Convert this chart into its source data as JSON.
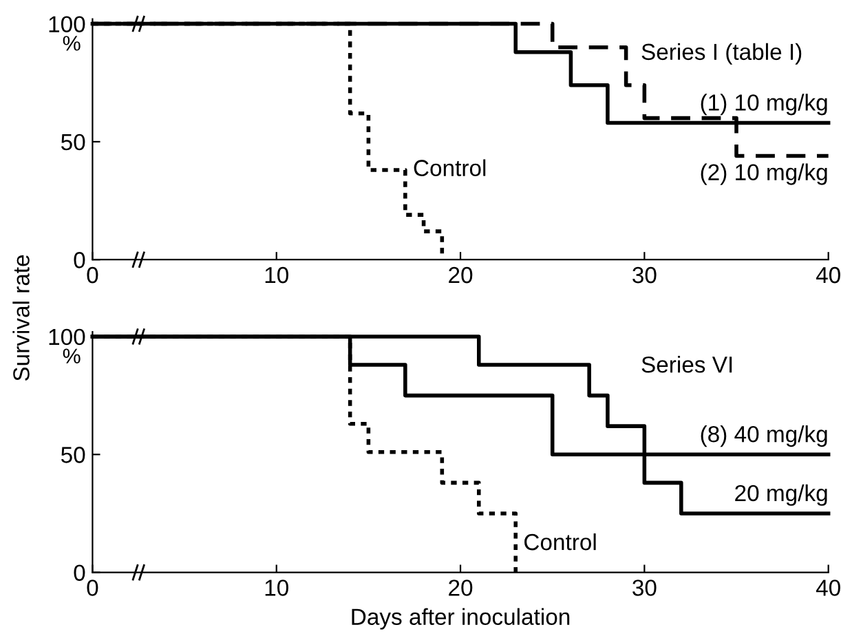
{
  "chart_data": [
    {
      "type": "step",
      "title": "Series I (table I)",
      "ylabel": "Survival rate",
      "xlim": [
        0,
        40
      ],
      "ylim": [
        0,
        102
      ],
      "xticks": [
        0,
        10,
        20,
        30,
        40
      ],
      "yticks": [
        0,
        50,
        100
      ],
      "grid": false,
      "series": [
        {
          "color": "#000000",
          "line_style": "solid",
          "x": [
            0,
            23,
            26,
            28,
            40
          ],
          "values": [
            100,
            88,
            74,
            58,
            58
          ]
        },
        {
          "color": "#000000",
          "line_style": "dashed",
          "x": [
            0,
            25,
            29,
            30,
            35,
            40
          ],
          "values": [
            100,
            90,
            74,
            60,
            44,
            44
          ]
        },
        {
          "color": "#000000",
          "line_style": "dotted",
          "x": [
            0,
            14,
            15,
            17,
            18,
            19
          ],
          "values": [
            100,
            62,
            38,
            19,
            12,
            0
          ]
        }
      ],
      "annotations": [
        "%",
        {
          "text": "(1) 10 mg/kg",
          "x": 40,
          "y": 58
        },
        {
          "text": "(2) 10 mg/kg",
          "x": 40,
          "y": 44
        },
        {
          "text": "Control",
          "x": 17,
          "y": 38
        }
      ]
    },
    {
      "type": "step",
      "title": "Series VI",
      "xlabel": "Days after inoculation",
      "xlim": [
        0,
        40
      ],
      "ylim": [
        0,
        102
      ],
      "xticks": [
        0,
        10,
        20,
        30,
        40
      ],
      "yticks": [
        0,
        50,
        100
      ],
      "grid": false,
      "series": [
        {
          "color": "#000000",
          "line_style": "solid",
          "x": [
            0,
            21,
            27,
            28,
            30,
            40
          ],
          "values": [
            100,
            88,
            75,
            62,
            50,
            50
          ]
        },
        {
          "color": "#000000",
          "line_style": "solid",
          "x": [
            0,
            14,
            17,
            25,
            30,
            32,
            40
          ],
          "values": [
            100,
            88,
            75,
            50,
            38,
            25,
            25
          ]
        },
        {
          "color": "#000000",
          "line_style": "dotted",
          "x": [
            0,
            14,
            15,
            19,
            21,
            23
          ],
          "values": [
            100,
            63,
            51,
            38,
            25,
            0
          ]
        }
      ],
      "annotations": [
        "%",
        {
          "text": "(8) 40 mg/kg",
          "x": 40,
          "y": 50
        },
        {
          "text": "20 mg/kg",
          "x": 40,
          "y": 25
        },
        {
          "text": "Control",
          "x": 23,
          "y": 12
        }
      ]
    }
  ]
}
